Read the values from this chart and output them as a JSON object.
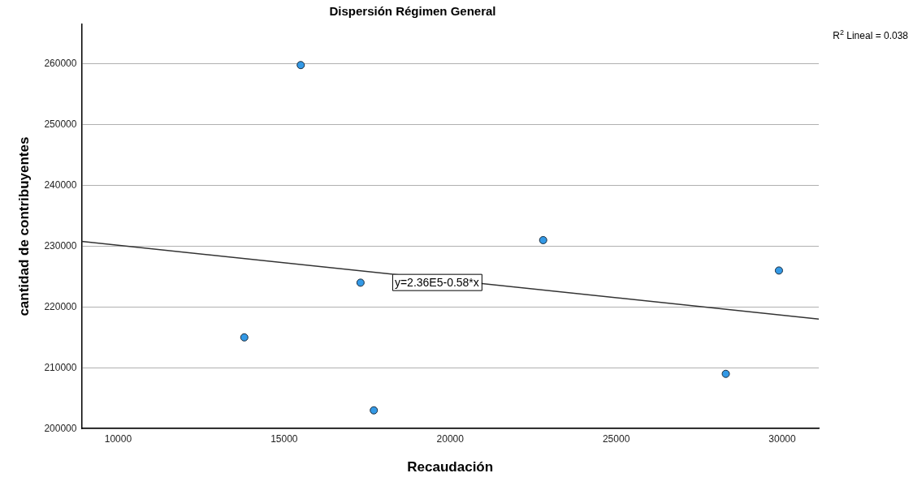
{
  "chart_data": {
    "type": "scatter",
    "title": "Dispersión Régimen General",
    "xlabel": "Recaudación",
    "ylabel": "cantidad de contribuyentes",
    "xlim": [
      8900,
      31100
    ],
    "xticks": [
      10000,
      15000,
      20000,
      25000,
      30000
    ],
    "ylim": [
      200000,
      266500
    ],
    "yticks": [
      200000,
      210000,
      220000,
      230000,
      240000,
      250000,
      260000
    ],
    "grid": "y",
    "legend": false,
    "marker": "circle",
    "series": [
      {
        "color": "#3399e6",
        "x": [
          13800,
          15500,
          17300,
          17700,
          22800,
          28300,
          29900
        ],
        "values": [
          215000,
          259800,
          224000,
          203000,
          231000,
          209000,
          226000
        ]
      },
      {
        "type": "line",
        "color": "#333333",
        "marker": "none",
        "x": [
          8900,
          31100
        ],
        "values": [
          230800,
          218000
        ]
      }
    ],
    "annotations": [
      {
        "text": "y=2.36E5-0.58*x",
        "x": 19600,
        "y": 224100
      },
      "R$^{2}$ Lineal = 0.038"
    ]
  }
}
